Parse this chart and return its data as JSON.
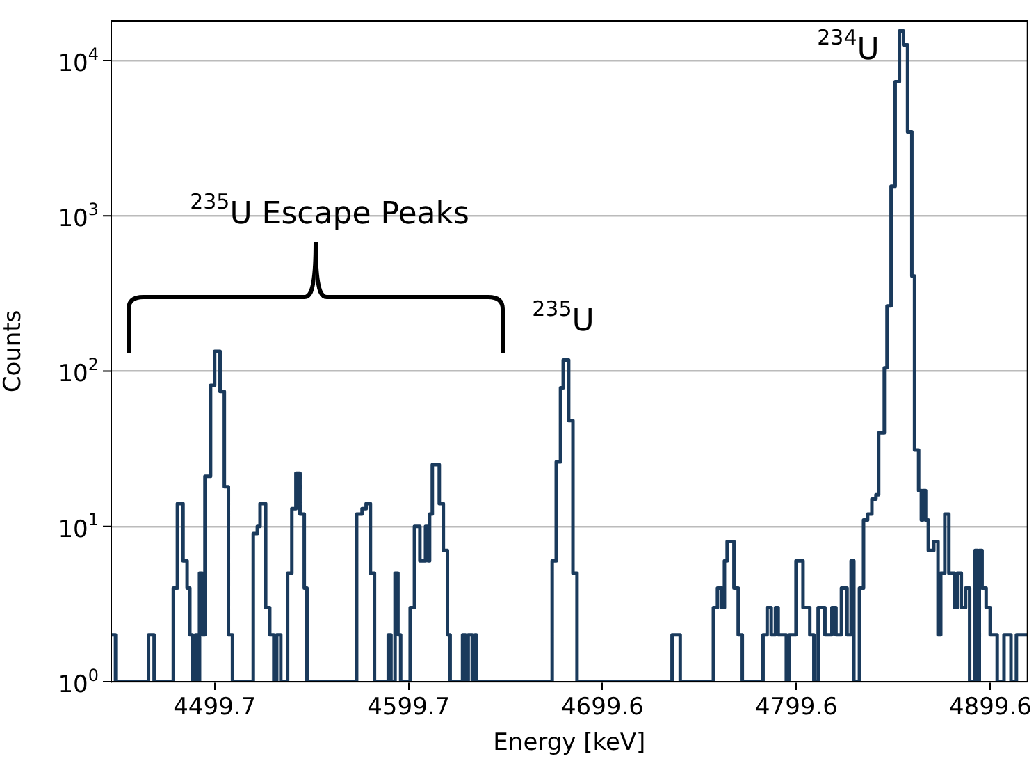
{
  "chart_data": {
    "type": "step",
    "xlabel": "Energy [keV]",
    "ylabel": "Counts",
    "log": true,
    "grid": "y",
    "xlim": [
      4446.4,
      4918.7
    ],
    "xticks": [
      4499.7,
      4599.7,
      4699.6,
      4799.6,
      4899.6
    ],
    "ylim": [
      1,
      18000
    ],
    "yticks": [
      {
        "value": 1,
        "label": "10$^{0}$"
      },
      {
        "value": 10,
        "label": "10$^{1}$"
      },
      {
        "value": 100,
        "label": "10$^{2}$"
      },
      {
        "value": 1000,
        "label": "10$^{3}$"
      },
      {
        "value": 10000,
        "label": "10$^{4}$"
      }
    ],
    "annotations": [
      "$^{235}$U Escape Peaks",
      "$^{235}$U",
      "$^{234}$U"
    ],
    "x": [
      4446.4,
      4448.6,
      4465.6,
      4468.5,
      4478.4,
      4480.5,
      4483.4,
      4485.5,
      4486.9,
      4488.3,
      4489.8,
      4491.2,
      4491.9,
      4493.3,
      4494.7,
      4497.6,
      4499.7,
      4502.5,
      4504.7,
      4506.8,
      4508.9,
      4519.6,
      4521.7,
      4523.1,
      4526.0,
      4528.1,
      4530.2,
      4531.7,
      4533.8,
      4537.3,
      4539.5,
      4541.6,
      4543.7,
      4545.9,
      4547.3,
      4572.9,
      4575.7,
      4577.8,
      4580.0,
      4582.1,
      4589.2,
      4590.6,
      4592.7,
      4594.2,
      4595.6,
      4600.5,
      4602.7,
      4605.5,
      4608.4,
      4609.8,
      4610.5,
      4611.9,
      4615.5,
      4617.6,
      4619.7,
      4621.1,
      4627.5,
      4629.0,
      4630.4,
      4632.5,
      4633.9,
      4634.6,
      4673.7,
      4675.8,
      4678.0,
      4679.4,
      4682.2,
      4684.4,
      4686.5,
      4735.5,
      4739.7,
      4756.8,
      4758.9,
      4761.1,
      4762.5,
      4763.9,
      4767.4,
      4769.6,
      4771.7,
      4782.4,
      4784.5,
      4786.6,
      4788.8,
      4790.2,
      4794.4,
      4795.9,
      4799.4,
      4803.0,
      4806.5,
      4808.6,
      4810.8,
      4814.3,
      4815.7,
      4817.9,
      4820.0,
      4822.8,
      4825.7,
      4827.8,
      4829.2,
      4832.1,
      4834.2,
      4836.3,
      4838.5,
      4840.6,
      4842.0,
      4844.9,
      4846.3,
      4848.4,
      4850.5,
      4852.7,
      4854.8,
      4856.9,
      4859.1,
      4860.5,
      4862.6,
      4864.0,
      4864.7,
      4866.2,
      4867.6,
      4870.4,
      4872.6,
      4874.0,
      4876.1,
      4878.2,
      4881.1,
      4882.5,
      4884.6,
      4886.8,
      4888.9,
      4891.7,
      4893.2,
      4893.9,
      4895.3,
      4897.4,
      4899.5,
      4903.1,
      4906.6,
      4910.2,
      4913.0,
      4918.7
    ],
    "series": [
      {
        "color": "#1a3a5c",
        "values": [
          2,
          1,
          2,
          1,
          4,
          14,
          6,
          4,
          2,
          1,
          2,
          1,
          5,
          2,
          21,
          81,
          134,
          74,
          18,
          2,
          1,
          9,
          10,
          14,
          3,
          2,
          1,
          2,
          1,
          5,
          13,
          22,
          12,
          4,
          1,
          12,
          13,
          14,
          5,
          1,
          2,
          1,
          5,
          2,
          1,
          3,
          10,
          6,
          10,
          6,
          12,
          25,
          14,
          7,
          2,
          1,
          2,
          1,
          2,
          1,
          2,
          1,
          6,
          26,
          78,
          118,
          48,
          5,
          1,
          2,
          1,
          3,
          4,
          3,
          6,
          8,
          4,
          2,
          1,
          2,
          3,
          2,
          3,
          2,
          1,
          2,
          6,
          3,
          2,
          1,
          3,
          2,
          2,
          3,
          2,
          4,
          2,
          6,
          1,
          4,
          11,
          12,
          15,
          16,
          40,
          105,
          263,
          1550,
          7300,
          15500,
          12600,
          3470,
          410,
          31,
          17,
          11,
          17,
          11,
          7,
          8,
          2,
          5,
          12,
          5,
          3,
          5,
          3,
          4,
          1,
          7,
          1,
          7,
          4,
          3,
          2,
          1,
          2,
          1,
          2,
          2
        ]
      }
    ]
  }
}
